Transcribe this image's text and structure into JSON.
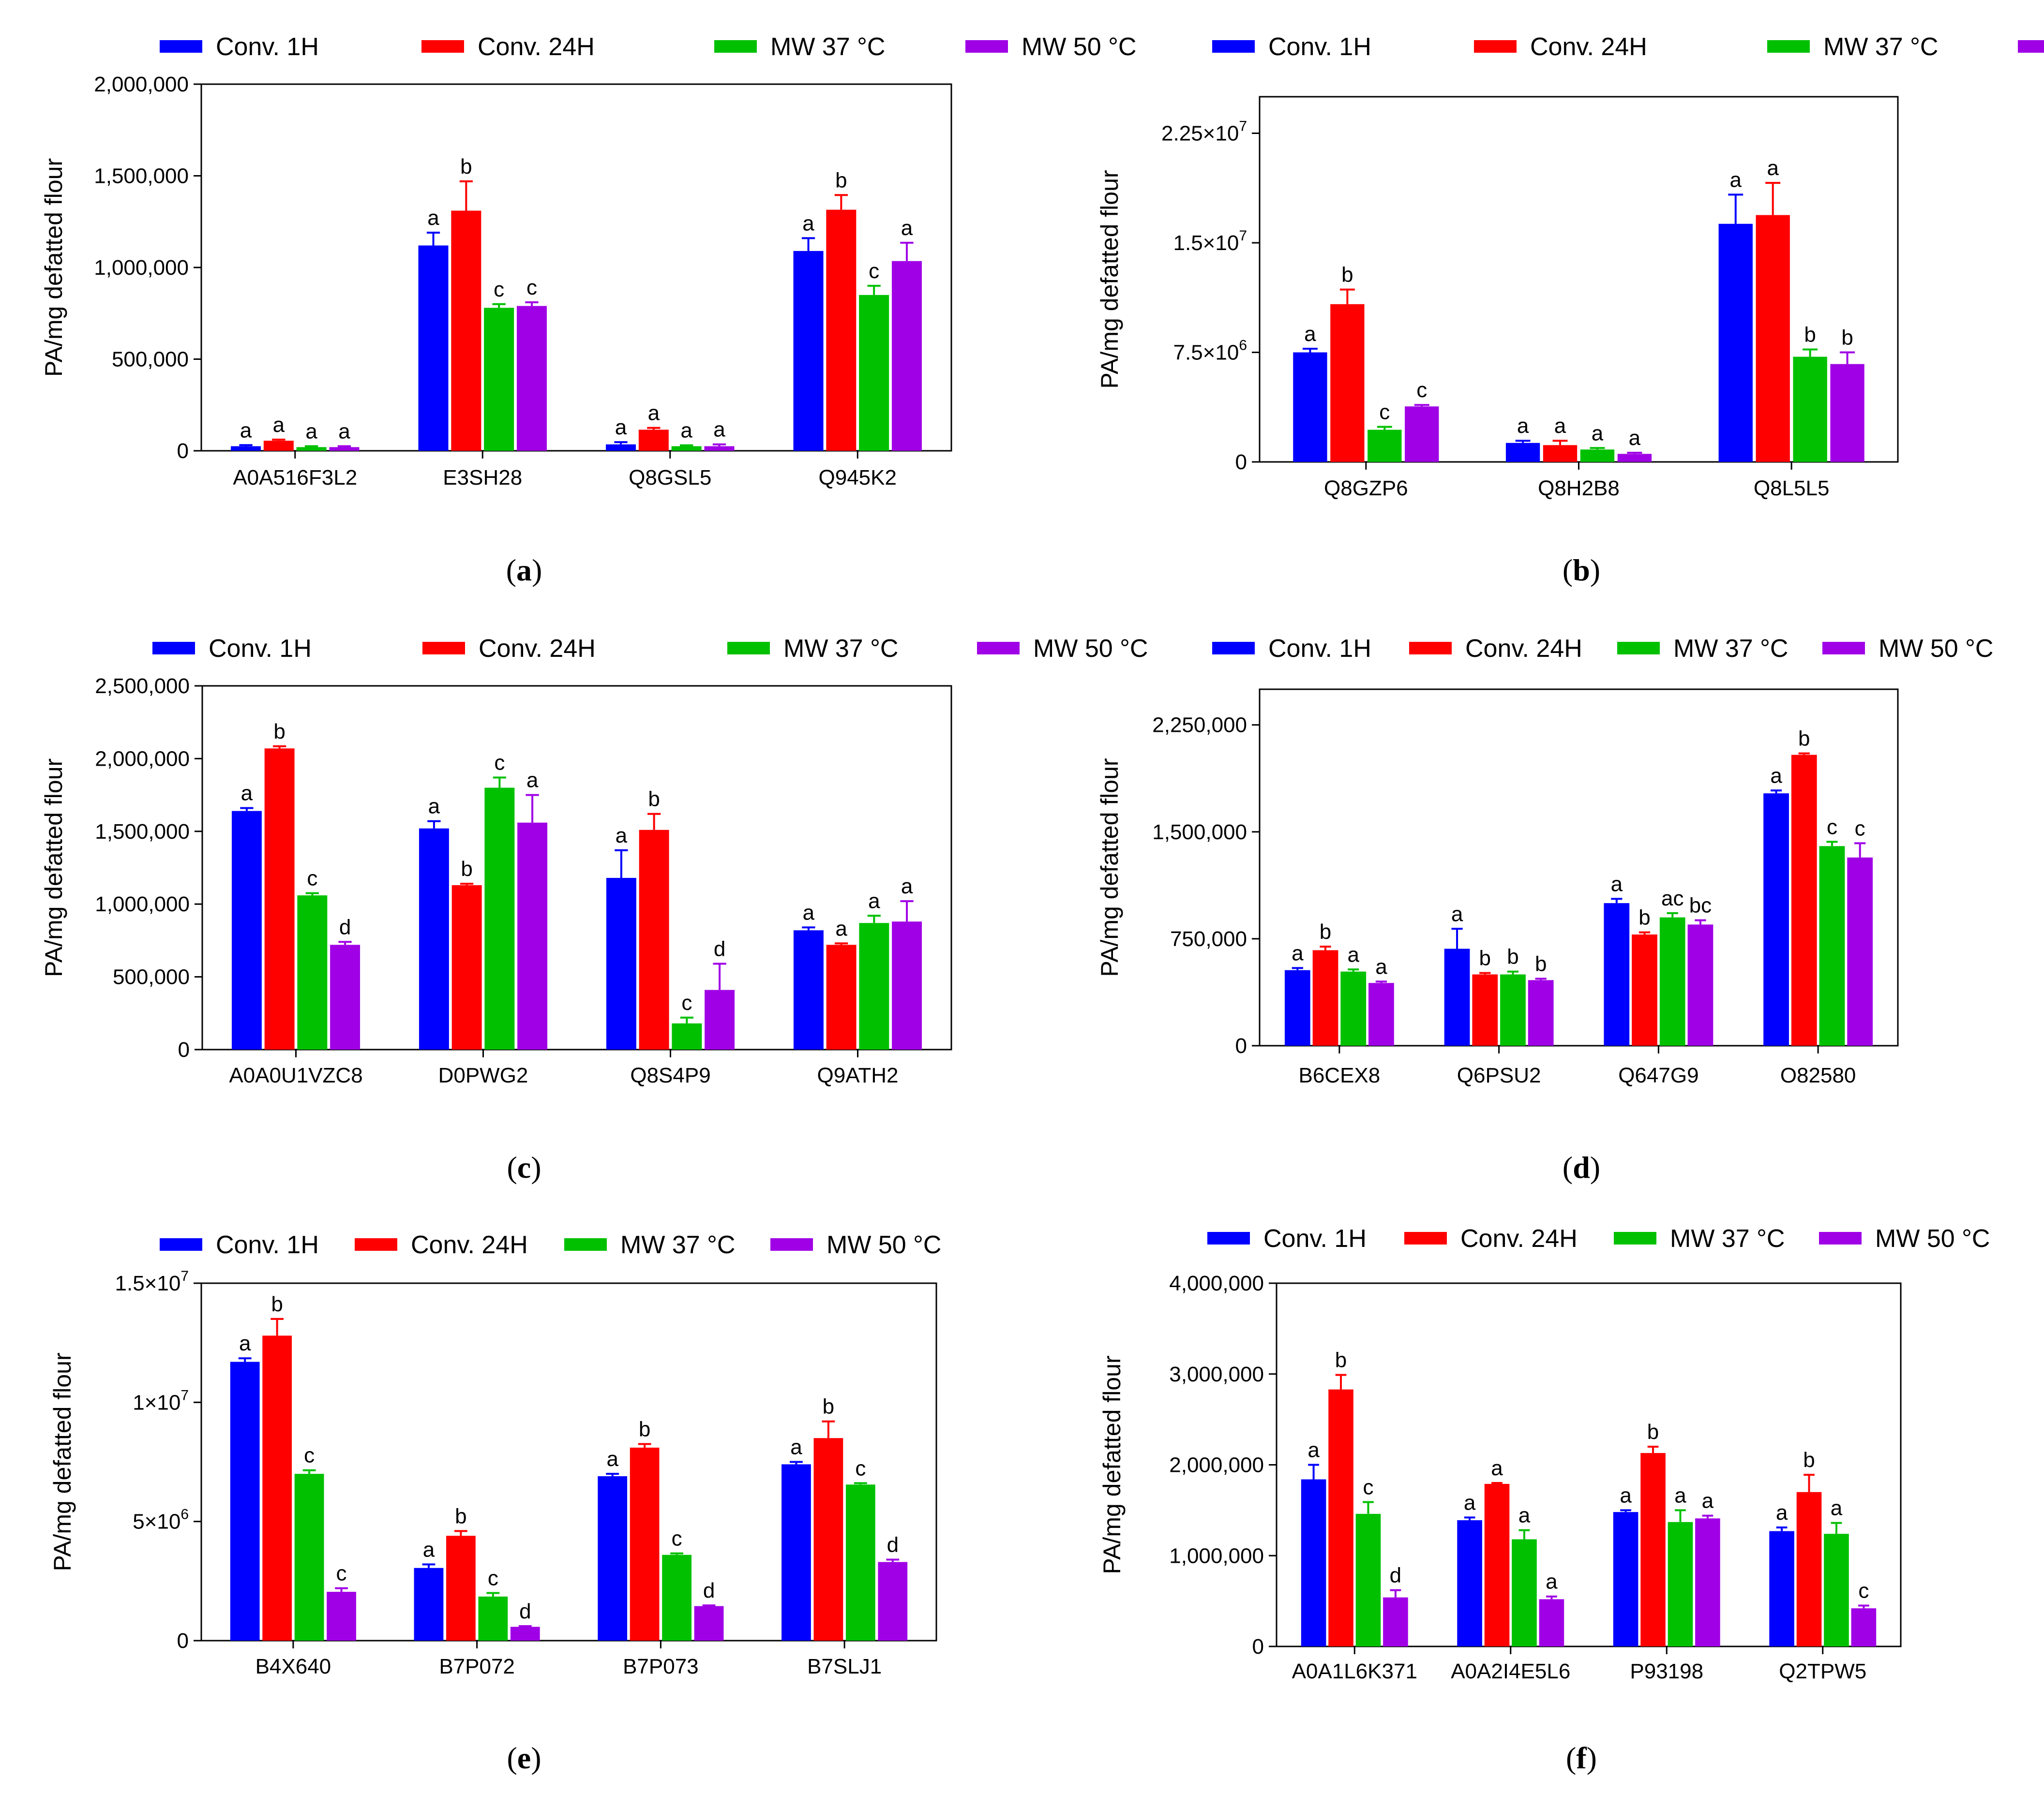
{
  "colors": {
    "s0": "#0000ff",
    "s1": "#ff0000",
    "s2": "#00c000",
    "s3": "#a000e6"
  },
  "legend": [
    "Conv. 1H",
    "Conv. 24H",
    "MW 37 °C",
    "MW 50 °C"
  ],
  "chart_data": [
    {
      "id": "a",
      "caption": "a",
      "type": "bar",
      "ylabel": "PA/mg defatted flour",
      "ylim": [
        0,
        2000000
      ],
      "yticks": [
        0,
        500000,
        1000000,
        1500000,
        2000000
      ],
      "yticklabels": [
        "0",
        "500,000",
        "1,000,000",
        "1,500,000",
        "2,000,000"
      ],
      "categories": [
        "A0A516F3L2",
        "E3SH28",
        "Q8GSL5",
        "Q945K2"
      ],
      "series": [
        {
          "name": "Conv. 1H",
          "values": [
            25000,
            1120000,
            35000,
            1090000
          ],
          "errors": [
            6000,
            70000,
            12000,
            70000
          ],
          "letters": [
            "a",
            "a",
            "a",
            "a"
          ]
        },
        {
          "name": "Conv. 24H",
          "values": [
            55000,
            1310000,
            115000,
            1315000
          ],
          "errors": [
            6000,
            160000,
            10000,
            80000
          ],
          "letters": [
            "a",
            "b",
            "a",
            "b"
          ]
        },
        {
          "name": "MW 37 °C",
          "values": [
            20000,
            780000,
            25000,
            850000
          ],
          "errors": [
            5000,
            20000,
            5000,
            50000
          ],
          "letters": [
            "a",
            "c",
            "a",
            "c"
          ]
        },
        {
          "name": "MW 50 °C",
          "values": [
            20000,
            790000,
            25000,
            1035000
          ],
          "errors": [
            5000,
            20000,
            10000,
            100000
          ],
          "letters": [
            "a",
            "c",
            "a",
            "a"
          ]
        }
      ]
    },
    {
      "id": "b",
      "caption": "b",
      "type": "bar",
      "ylabel": "PA/mg defatted flour",
      "ylim": [
        0,
        25000000
      ],
      "yticks": [
        0,
        7500000,
        15000000,
        22500000
      ],
      "yticklabels": [
        [
          "0",
          ""
        ],
        [
          "7.5×10",
          "6"
        ],
        [
          "1.5×10",
          "7"
        ],
        [
          "2.25×10",
          "7"
        ]
      ],
      "categories": [
        "Q8GZP6",
        "Q8H2B8",
        "Q8L5L5"
      ],
      "series": [
        {
          "name": "Conv. 1H",
          "values": [
            7500000,
            1300000,
            16300000
          ],
          "errors": [
            250000,
            150000,
            2000000
          ],
          "letters": [
            "a",
            "a",
            "a"
          ]
        },
        {
          "name": "Conv. 24H",
          "values": [
            10800000,
            1150000,
            16900000
          ],
          "errors": [
            1000000,
            300000,
            2200000
          ],
          "letters": [
            "b",
            "a",
            "a"
          ]
        },
        {
          "name": "MW 37 °C",
          "values": [
            2200000,
            850000,
            7200000
          ],
          "errors": [
            200000,
            100000,
            500000
          ],
          "letters": [
            "c",
            "a",
            "b"
          ]
        },
        {
          "name": "MW 50 °C",
          "values": [
            3800000,
            550000,
            6700000
          ],
          "errors": [
            100000,
            80000,
            800000
          ],
          "letters": [
            "c",
            "a",
            "b"
          ]
        }
      ]
    },
    {
      "id": "c",
      "caption": "c",
      "type": "bar",
      "ylabel": "PA/mg defatted flour",
      "ylim": [
        0,
        2500000
      ],
      "yticks": [
        0,
        500000,
        1000000,
        1500000,
        2000000,
        2500000
      ],
      "yticklabels": [
        "0",
        "500,000",
        "1,000,000",
        "1,500,000",
        "2,000,000",
        "2,500,000"
      ],
      "categories": [
        "A0A0U1VZC8",
        "D0PWG2",
        "Q8S4P9",
        "Q9ATH2"
      ],
      "series": [
        {
          "name": "Conv. 1H",
          "values": [
            1640000,
            1520000,
            1180000,
            820000
          ],
          "errors": [
            20000,
            50000,
            190000,
            20000
          ],
          "letters": [
            "a",
            "a",
            "a",
            "a"
          ]
        },
        {
          "name": "Conv. 24H",
          "values": [
            2070000,
            1130000,
            1510000,
            720000
          ],
          "errors": [
            15000,
            10000,
            110000,
            10000
          ],
          "letters": [
            "b",
            "b",
            "b",
            "a"
          ]
        },
        {
          "name": "MW 37 °C",
          "values": [
            1060000,
            1800000,
            180000,
            870000
          ],
          "errors": [
            15000,
            70000,
            40000,
            50000
          ],
          "letters": [
            "c",
            "c",
            "c",
            "a"
          ]
        },
        {
          "name": "MW 50 °C",
          "values": [
            720000,
            1560000,
            410000,
            880000
          ],
          "errors": [
            20000,
            190000,
            180000,
            140000
          ],
          "letters": [
            "d",
            "a",
            "d",
            "a"
          ]
        }
      ]
    },
    {
      "id": "d",
      "caption": "d",
      "type": "bar",
      "ylabel": "PA/mg defatted flour",
      "ylim": [
        0,
        2500000
      ],
      "yticks": [
        0,
        750000,
        1500000,
        2250000
      ],
      "yticklabels": [
        "0",
        "750,000",
        "1,500,000",
        "2,250,000"
      ],
      "categories": [
        "B6CEX8",
        "Q6PSU2",
        "Q647G9",
        "O82580"
      ],
      "series": [
        {
          "name": "Conv. 1H",
          "values": [
            530000,
            680000,
            1000000,
            1770000
          ],
          "errors": [
            15000,
            140000,
            30000,
            20000
          ],
          "letters": [
            "a",
            "a",
            "a",
            "a"
          ]
        },
        {
          "name": "Conv. 24H",
          "values": [
            670000,
            500000,
            780000,
            2040000
          ],
          "errors": [
            25000,
            10000,
            15000,
            10000
          ],
          "letters": [
            "b",
            "b",
            "b",
            "b"
          ]
        },
        {
          "name": "MW 37 °C",
          "values": [
            520000,
            500000,
            900000,
            1400000
          ],
          "errors": [
            15000,
            20000,
            30000,
            30000
          ],
          "letters": [
            "a",
            "b",
            "ac",
            "c"
          ]
        },
        {
          "name": "MW 50 °C",
          "values": [
            440000,
            460000,
            850000,
            1320000
          ],
          "errors": [
            10000,
            10000,
            30000,
            100000
          ],
          "letters": [
            "a",
            "b",
            "bc",
            "c"
          ]
        }
      ]
    },
    {
      "id": "e",
      "caption": "e",
      "type": "bar",
      "ylabel": "PA/mg defatted flour",
      "ylim": [
        0,
        15000000
      ],
      "yticks": [
        0,
        5000000,
        10000000,
        15000000
      ],
      "yticklabels": [
        [
          "0",
          ""
        ],
        [
          "5×10",
          "6"
        ],
        [
          "1×10",
          "7"
        ],
        [
          "1.5×10",
          "7"
        ]
      ],
      "categories": [
        "B4X640",
        "B7P072",
        "B7P073",
        "B7SLJ1"
      ],
      "series": [
        {
          "name": "Conv. 1H",
          "values": [
            11700000,
            3050000,
            6900000,
            7400000
          ],
          "errors": [
            150000,
            150000,
            100000,
            100000
          ],
          "letters": [
            "a",
            "a",
            "a",
            "a"
          ]
        },
        {
          "name": "Conv. 24H",
          "values": [
            12800000,
            4400000,
            8100000,
            8500000
          ],
          "errors": [
            700000,
            200000,
            150000,
            700000
          ],
          "letters": [
            "b",
            "b",
            "b",
            "b"
          ]
        },
        {
          "name": "MW 37 °C",
          "values": [
            7000000,
            1850000,
            3600000,
            6550000
          ],
          "errors": [
            150000,
            150000,
            60000,
            60000
          ],
          "letters": [
            "c",
            "c",
            "c",
            "c"
          ]
        },
        {
          "name": "MW 50 °C",
          "values": [
            2050000,
            580000,
            1450000,
            3300000
          ],
          "errors": [
            150000,
            30000,
            30000,
            100000
          ],
          "letters": [
            "c",
            "d",
            "d",
            "d"
          ]
        }
      ]
    },
    {
      "id": "f",
      "caption": "f",
      "type": "bar",
      "ylabel": "PA/mg defatted flour",
      "ylim": [
        0,
        4000000
      ],
      "yticks": [
        0,
        1000000,
        2000000,
        3000000,
        4000000
      ],
      "yticklabels": [
        "0",
        "1,000,000",
        "2,000,000",
        "3,000,000",
        "4,000,000"
      ],
      "categories": [
        "A0A1L6K371",
        "A0A2I4E5L6",
        "P93198",
        "Q2TPW5"
      ],
      "series": [
        {
          "name": "Conv. 1H",
          "values": [
            1840000,
            1390000,
            1480000,
            1270000
          ],
          "errors": [
            160000,
            30000,
            20000,
            40000
          ],
          "letters": [
            "a",
            "a",
            "a",
            "a"
          ]
        },
        {
          "name": "Conv. 24H",
          "values": [
            2830000,
            1790000,
            2130000,
            1700000
          ],
          "errors": [
            160000,
            10000,
            70000,
            190000
          ],
          "letters": [
            "b",
            "a",
            "b",
            "b"
          ]
        },
        {
          "name": "MW 37 °C",
          "values": [
            1460000,
            1180000,
            1370000,
            1240000
          ],
          "errors": [
            130000,
            100000,
            130000,
            120000
          ],
          "letters": [
            "c",
            "a",
            "a",
            "a"
          ]
        },
        {
          "name": "MW 50 °C",
          "values": [
            540000,
            520000,
            1410000,
            420000
          ],
          "errors": [
            80000,
            30000,
            30000,
            30000
          ],
          "letters": [
            "d",
            "a",
            "a",
            "c"
          ]
        }
      ]
    }
  ]
}
